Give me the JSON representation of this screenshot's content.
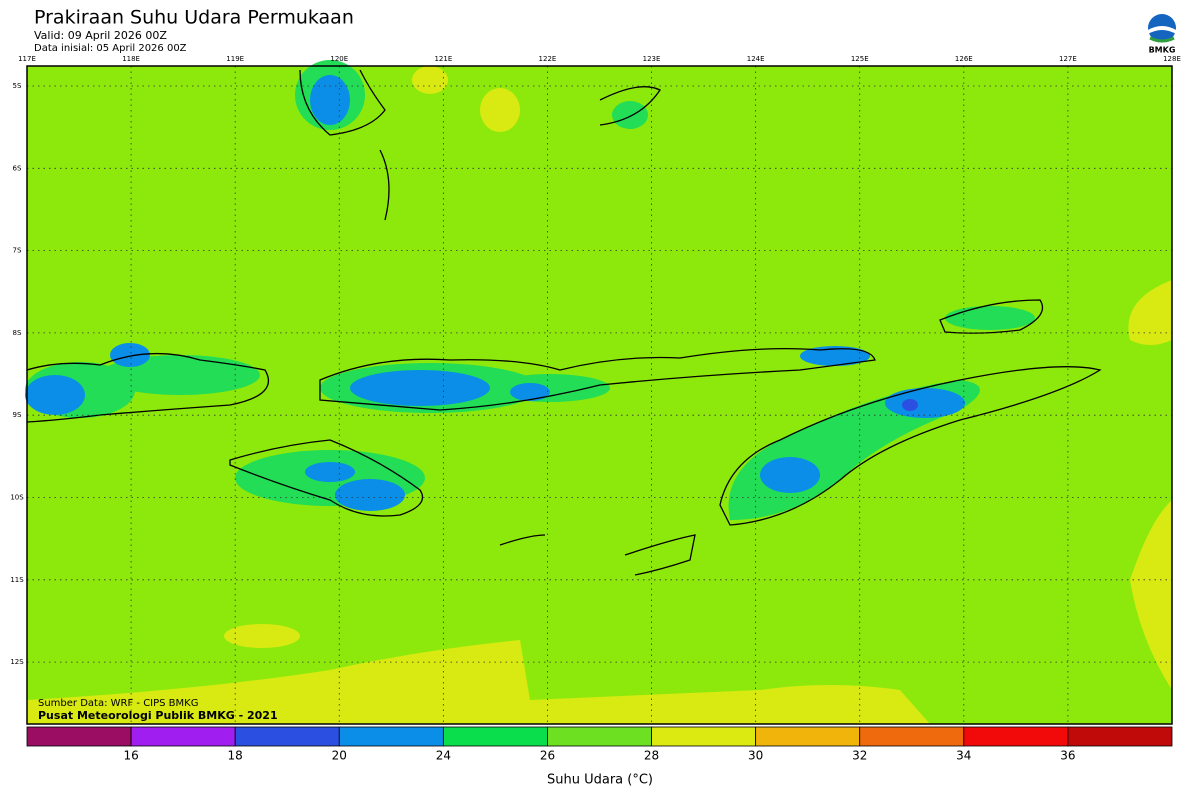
{
  "header": {
    "title": "Prakiraan Suhu Udara Permukaan",
    "valid": "Valid: 09 April 2026 00Z",
    "initial": "Data inisial: 05 April 2026 00Z",
    "logo_text": "BMKG"
  },
  "map": {
    "lon_labels": [
      "117E",
      "118E",
      "119E",
      "120E",
      "121E",
      "122E",
      "123E",
      "124E",
      "125E",
      "126E",
      "127E",
      "128E"
    ],
    "lat_labels": [
      "5S",
      "6S",
      "7S",
      "8S",
      "9S",
      "10S",
      "11S",
      "12S"
    ],
    "source": "Sumber Data: WRF - CIPS BMKG",
    "credit": "Pusat Meteorologi Publik BMKG - 2021"
  },
  "colorbar": {
    "colors": [
      "#9b0d63",
      "#a01ef0",
      "#2b4fe0",
      "#0b8ee8",
      "#0ade4c",
      "#6ee022",
      "#dcea12",
      "#f0b40a",
      "#ef6a0c",
      "#f20a0a",
      "#c00a0a"
    ],
    "ticks": [
      16,
      18,
      20,
      24,
      26,
      28,
      30,
      32,
      34,
      36
    ],
    "label": "Suhu Udara (°C)"
  }
}
